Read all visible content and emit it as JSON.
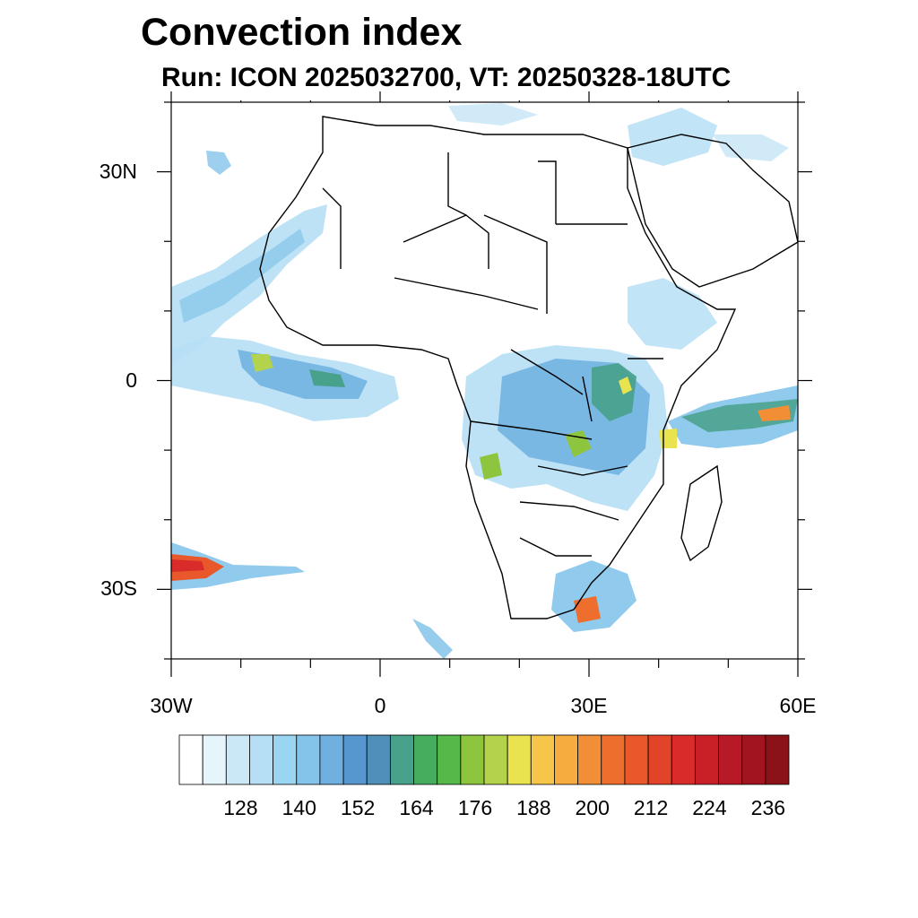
{
  "title": "Convection index",
  "subtitle": "Run: ICON 2025032700,  VT: 20250328-18UTC",
  "map": {
    "region": "Africa",
    "lon_range": [
      -30,
      60
    ],
    "lat_range": [
      -40,
      40
    ],
    "lat_ticks": [
      {
        "value": 30,
        "label": "30N"
      },
      {
        "value": 0,
        "label": "0"
      },
      {
        "value": -30,
        "label": "30S"
      }
    ],
    "lon_ticks": [
      {
        "value": -30,
        "label": "30W"
      },
      {
        "value": 0,
        "label": "0"
      },
      {
        "value": 30,
        "label": "30E"
      },
      {
        "value": 60,
        "label": "60E"
      }
    ]
  },
  "colorbar": {
    "labels": [
      "128",
      "140",
      "152",
      "164",
      "176",
      "188",
      "200",
      "212",
      "224",
      "236"
    ],
    "colors": [
      "#ffffff",
      "#e6f4fc",
      "#cbe8f7",
      "#b6dff5",
      "#9ad6f2",
      "#84c4ea",
      "#6fb0e0",
      "#5797cf",
      "#4f8fb8",
      "#48a18a",
      "#46ad5e",
      "#54b948",
      "#8ec53f",
      "#b4d34c",
      "#e8e34f",
      "#f6c64a",
      "#f6ac3e",
      "#f28f36",
      "#ee6f2d",
      "#e8582b",
      "#e2442a",
      "#d92b2a",
      "#c92028",
      "#b71926",
      "#a21520",
      "#8b1219"
    ]
  }
}
